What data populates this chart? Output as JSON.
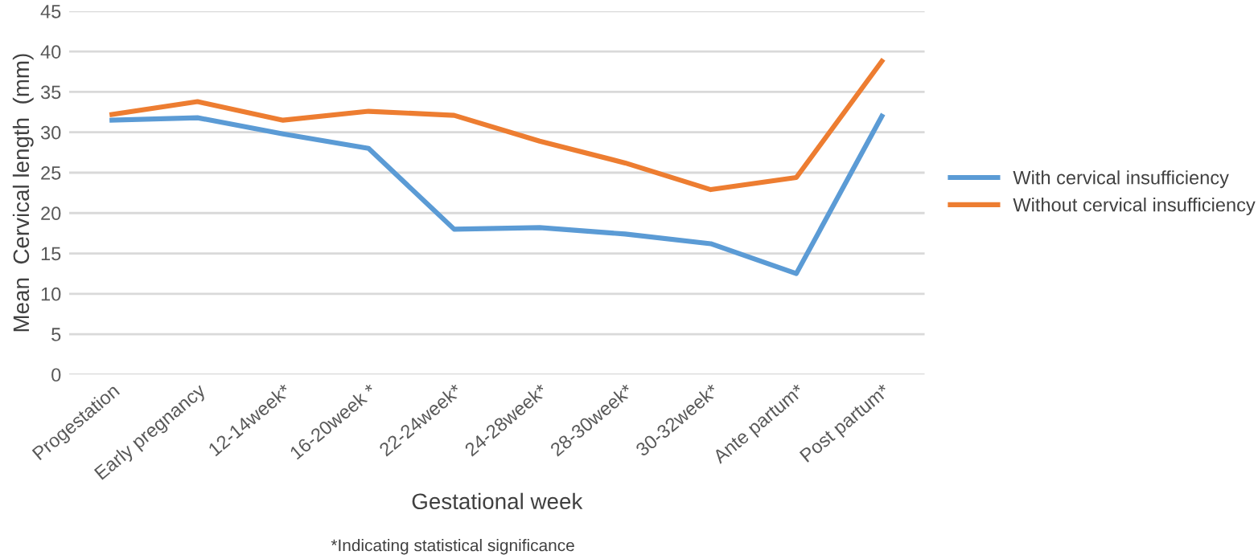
{
  "chart_data": {
    "type": "line",
    "categories": [
      "Progestation",
      "Early pregnancy",
      "12-14week*",
      "16-20week *",
      "22-24week*",
      "24-28week*",
      "28-30week*",
      "30-32week*",
      "Ante partum*",
      "Post partum*"
    ],
    "series": [
      {
        "name": "With cervical insufficiency",
        "color": "#5b9bd5",
        "values": [
          31.5,
          31.8,
          29.8,
          28.0,
          18.0,
          18.2,
          17.4,
          16.2,
          12.5,
          32.0
        ]
      },
      {
        "name": "Without cervical insufficiency",
        "color": "#ed7d31",
        "values": [
          32.2,
          33.8,
          31.5,
          32.6,
          32.1,
          28.9,
          26.2,
          22.9,
          24.4,
          38.8
        ]
      }
    ],
    "xlabel": "Gestational week",
    "ylabel": "Mean  Cervical length  (mm)",
    "annotations": [
      "*Indicating statistical significance"
    ],
    "ylim": [
      0,
      45
    ],
    "yticks": [
      0,
      5,
      10,
      15,
      20,
      25,
      30,
      35,
      40,
      45
    ],
    "grid": "y",
    "legend": "right",
    "marker": "none",
    "line_style": "solid"
  }
}
